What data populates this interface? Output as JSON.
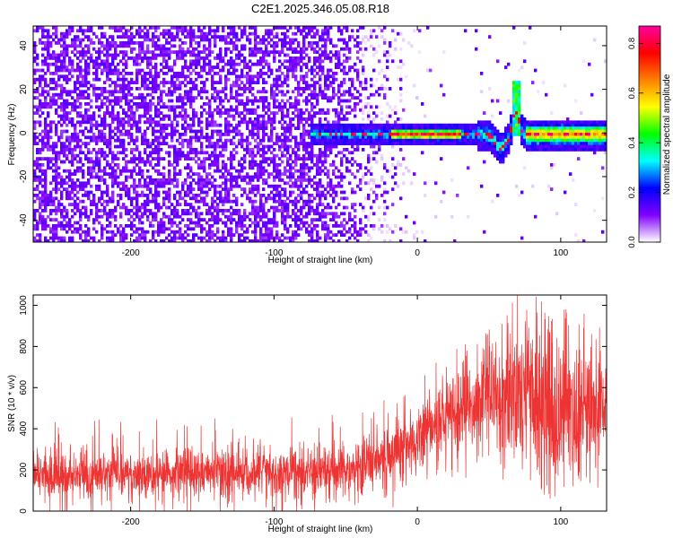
{
  "title": "C2E1.2025.346.05.08.R18",
  "chart_data": [
    {
      "type": "heatmap",
      "xlabel": "Height of straight line (km)",
      "ylabel": "Frequency (Hz)",
      "xlim": [
        -268,
        132
      ],
      "ylim": [
        -50,
        49
      ],
      "xticks": [
        -200,
        -100,
        0,
        100
      ],
      "yticks": [
        -40,
        -20,
        0,
        20,
        40
      ],
      "colorbar": {
        "label": "Normalized spectral amplitude",
        "range": [
          0.0,
          0.87
        ],
        "ticks": [
          0.0,
          0.2,
          0.4,
          0.6,
          0.8
        ],
        "colormap": [
          "#ffffff",
          "#8000ff",
          "#0000ff",
          "#00ffff",
          "#00ff00",
          "#ffff00",
          "#ff8000",
          "#ff0000",
          "#ff00a0"
        ]
      },
      "features": {
        "noise_cutoff_km": -10,
        "signal_band": {
          "x_start": -75,
          "x_end": 132,
          "freq_center_hz": 0,
          "freq_halfwidth_hz": 3
        },
        "dip": {
          "x": 57,
          "freq_hz": -9
        },
        "spike": {
          "x": 68,
          "freq_hz": 24
        },
        "peak_color_range_km": [
          -20,
          30
        ]
      }
    },
    {
      "type": "line",
      "xlabel": "Height of straight line (km)",
      "ylabel": "SNR (10 * v/v)",
      "xlim": [
        -268,
        132
      ],
      "ylim": [
        0,
        1050
      ],
      "xticks": [
        -200,
        -100,
        0,
        100
      ],
      "yticks": [
        0,
        200,
        400,
        600,
        800,
        1000
      ],
      "color": "#ee3333",
      "envelope": {
        "x": [
          -268,
          -200,
          -100,
          -50,
          -20,
          0,
          30,
          50,
          70,
          90,
          132
        ],
        "lower": [
          60,
          60,
          70,
          80,
          120,
          200,
          300,
          350,
          200,
          150,
          200
        ],
        "upper": [
          290,
          300,
          300,
          330,
          420,
          520,
          680,
          780,
          920,
          880,
          780
        ]
      }
    }
  ]
}
